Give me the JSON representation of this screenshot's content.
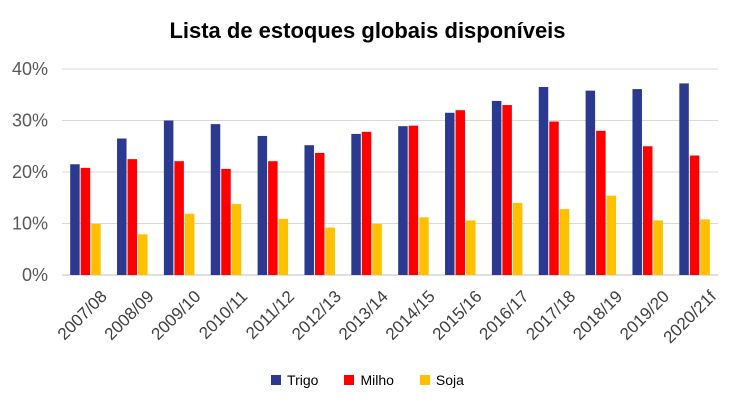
{
  "chart_data": {
    "type": "bar",
    "title": "Lista de estoques globais disponíveis",
    "categories": [
      "2007/08",
      "2008/09",
      "2009/10",
      "2010/11",
      "2011/12",
      "2012/13",
      "2013/14",
      "2014/15",
      "2015/16",
      "2016/17",
      "2017/18",
      "2018/19",
      "2019/20",
      "2020/21f"
    ],
    "series": [
      {
        "name": "Trigo",
        "color": "#2B3990",
        "values": [
          21.5,
          26.5,
          30.0,
          29.3,
          27.0,
          25.2,
          27.4,
          28.9,
          31.5,
          33.8,
          36.5,
          35.8,
          36.1,
          37.2
        ]
      },
      {
        "name": "Milho",
        "color": "#FF0000",
        "values": [
          20.8,
          22.5,
          22.1,
          20.6,
          22.1,
          23.7,
          27.8,
          29.0,
          32.0,
          33.0,
          29.8,
          28.0,
          25.0,
          23.2
        ]
      },
      {
        "name": "Soja",
        "color": "#FFC000",
        "values": [
          9.9,
          7.9,
          11.9,
          13.8,
          10.9,
          9.2,
          9.9,
          11.2,
          10.6,
          14.0,
          12.8,
          15.4,
          10.6,
          10.8
        ]
      }
    ],
    "ylim": [
      0,
      40
    ],
    "yticks": [
      0,
      10,
      20,
      30,
      40
    ],
    "ytick_labels": [
      "0%",
      "10%",
      "20%",
      "30%",
      "40%"
    ],
    "grid": true,
    "legend_position": "bottom"
  }
}
